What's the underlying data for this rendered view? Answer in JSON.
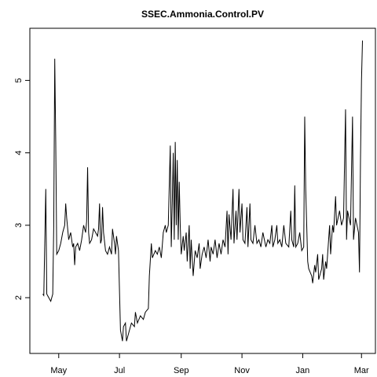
{
  "chart_data": {
    "type": "line",
    "title": "SSEC.Ammonia.Control.PV",
    "x": [
      -16,
      -15,
      -13,
      -12,
      -10,
      -8,
      -6,
      -5,
      -4,
      -3,
      -2,
      0,
      2,
      4,
      6,
      7,
      8,
      10,
      12,
      14,
      15,
      16,
      17,
      19,
      21,
      23,
      25,
      27,
      28,
      29,
      30,
      31,
      33,
      35,
      37,
      39,
      40,
      41,
      42,
      43,
      44,
      45,
      47,
      49,
      51,
      53,
      54,
      56,
      57,
      58,
      60,
      62,
      64,
      65,
      67,
      68,
      71,
      73,
      76,
      77,
      79,
      82,
      85,
      87,
      90,
      91,
      93,
      94,
      97,
      99,
      101,
      103,
      105,
      107,
      108,
      110,
      112,
      113,
      114,
      115,
      116,
      117,
      118,
      119,
      120,
      121,
      122,
      123,
      125,
      126,
      128,
      129,
      131,
      132,
      133,
      135,
      137,
      139,
      141,
      142,
      144,
      146,
      148,
      150,
      152,
      153,
      155,
      157,
      159,
      161,
      163,
      165,
      167,
      169,
      170,
      171,
      173,
      175,
      176,
      178,
      179,
      181,
      182,
      184,
      185,
      187,
      189,
      190,
      192,
      193,
      195,
      197,
      199,
      201,
      203,
      205,
      208,
      210,
      212,
      214,
      215,
      217,
      219,
      220,
      222,
      224,
      226,
      228,
      231,
      233,
      234,
      236,
      237,
      238,
      240,
      242,
      244,
      246,
      247,
      248,
      249,
      250,
      251,
      254,
      255,
      257,
      258,
      260,
      261,
      264,
      265,
      266,
      268,
      269,
      272,
      273,
      275,
      276,
      278,
      279,
      282,
      284,
      286,
      288,
      289,
      290,
      293,
      295,
      296,
      298,
      301,
      302,
      303,
      304,
      305
    ],
    "values": [
      2.05,
      2.03,
      3.5,
      2.05,
      2.0,
      1.95,
      2.05,
      3.0,
      5.3,
      4.15,
      2.6,
      2.65,
      2.75,
      2.9,
      3.0,
      3.3,
      3.1,
      2.8,
      2.9,
      2.7,
      2.75,
      2.45,
      2.7,
      2.75,
      2.65,
      2.8,
      3.0,
      2.9,
      3.05,
      3.8,
      2.9,
      2.75,
      2.8,
      2.95,
      2.9,
      2.85,
      2.95,
      3.3,
      2.75,
      2.8,
      3.25,
      2.9,
      2.65,
      2.6,
      2.7,
      2.6,
      2.95,
      2.75,
      2.6,
      2.85,
      2.65,
      1.55,
      1.4,
      1.6,
      1.65,
      1.4,
      1.55,
      1.65,
      1.6,
      1.8,
      1.65,
      1.75,
      1.7,
      1.8,
      1.85,
      2.3,
      2.75,
      2.55,
      2.65,
      2.6,
      2.7,
      2.55,
      2.9,
      3.0,
      2.9,
      3.0,
      4.1,
      2.7,
      3.3,
      4.0,
      2.8,
      4.15,
      3.0,
      3.9,
      2.8,
      3.6,
      3.0,
      2.6,
      2.85,
      2.65,
      2.9,
      2.5,
      3.0,
      2.4,
      2.8,
      2.3,
      2.65,
      2.55,
      2.75,
      2.4,
      2.6,
      2.7,
      2.55,
      2.8,
      2.5,
      2.7,
      2.6,
      2.8,
      2.55,
      2.75,
      2.6,
      2.8,
      2.7,
      3.2,
      2.6,
      3.15,
      2.8,
      3.5,
      2.75,
      3.2,
      2.8,
      3.5,
      2.9,
      3.3,
      2.8,
      2.75,
      3.25,
      2.7,
      3.3,
      2.8,
      2.75,
      3.0,
      2.75,
      2.8,
      2.7,
      2.9,
      2.7,
      2.8,
      2.75,
      3.0,
      2.7,
      2.8,
      3.0,
      2.75,
      2.8,
      2.7,
      3.0,
      2.75,
      2.7,
      3.2,
      2.8,
      2.7,
      3.55,
      2.7,
      2.75,
      2.9,
      2.65,
      2.7,
      4.5,
      3.5,
      3.0,
      2.5,
      2.4,
      2.3,
      2.2,
      2.45,
      2.35,
      2.6,
      2.25,
      2.4,
      2.6,
      2.25,
      2.5,
      2.4,
      3.0,
      2.6,
      3.0,
      2.9,
      3.4,
      3.0,
      3.2,
      3.0,
      3.1,
      4.6,
      2.8,
      3.2,
      3.0,
      4.5,
      2.8,
      3.1,
      2.9,
      2.35,
      3.9,
      5.0,
      5.55
    ],
    "color": "#000000",
    "xlim": [
      -29,
      318
    ],
    "xticks": [
      {
        "value": 0,
        "label": "May"
      },
      {
        "value": 61,
        "label": "Jul"
      },
      {
        "value": 123,
        "label": "Sep"
      },
      {
        "value": 184,
        "label": "Nov"
      },
      {
        "value": 245,
        "label": "Jan"
      },
      {
        "value": 304,
        "label": "Mar"
      }
    ],
    "ylim": [
      1.23,
      5.72
    ],
    "yticks": [
      2,
      3,
      4,
      5
    ]
  }
}
